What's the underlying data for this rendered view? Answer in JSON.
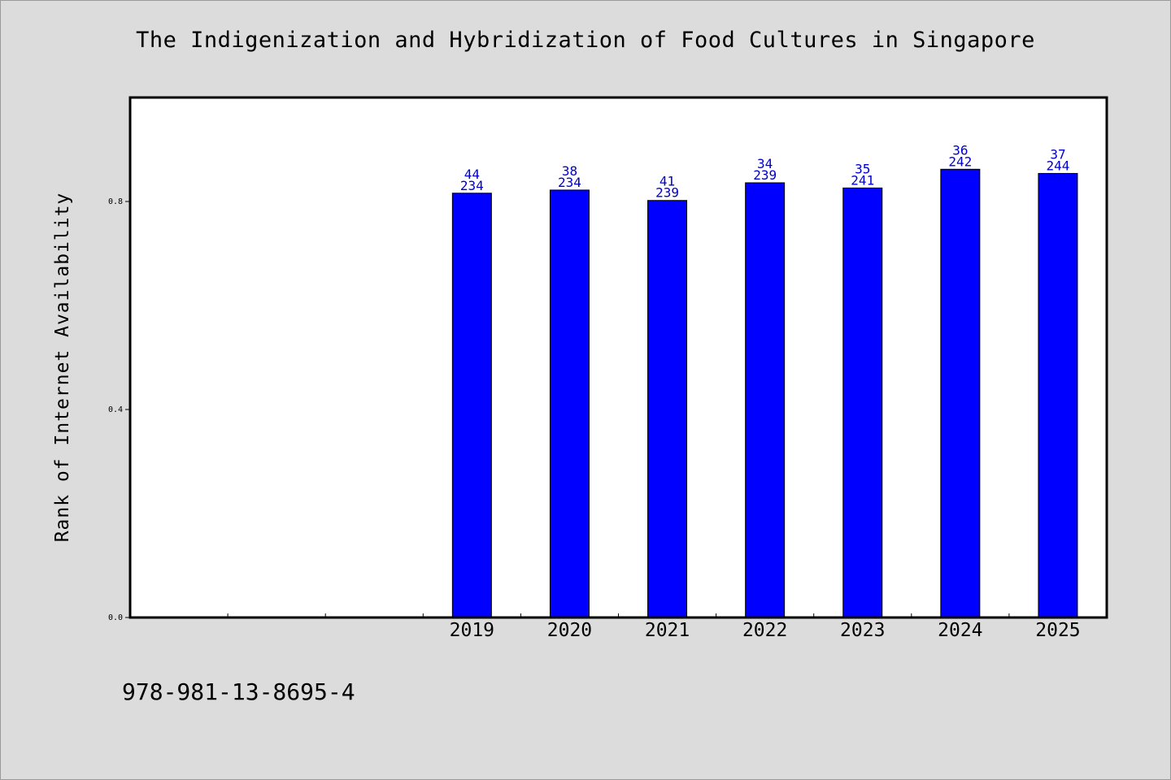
{
  "chart_data": {
    "type": "bar",
    "title": "The Indigenization and Hybridization of Food Cultures in Singapore",
    "xlabel": "",
    "ylabel": "Rank of Internet Availability",
    "categories": [
      "",
      "",
      "",
      "2019",
      "2020",
      "2021",
      "2022",
      "2023",
      "2024",
      "2025"
    ],
    "values": [
      null,
      null,
      null,
      0.816,
      0.822,
      0.802,
      0.836,
      0.826,
      0.862,
      0.854
    ],
    "bar_labels_top": [
      "",
      "",
      "",
      "44",
      "38",
      "41",
      "34",
      "35",
      "36",
      "37"
    ],
    "bar_labels_bottom": [
      "",
      "",
      "",
      "234",
      "234",
      "239",
      "239",
      "241",
      "242",
      "244"
    ],
    "ylim": [
      0,
      1.0
    ],
    "yticks": [
      "0.0",
      "0.4",
      "0.8"
    ],
    "ytick_values": [
      0.0,
      0.4,
      0.8
    ],
    "grid": false,
    "colors": {
      "bar": "#0000ff",
      "label": "#0000cc",
      "background": "#dcdcdc",
      "plot_background": "#ffffff"
    }
  },
  "footer": {
    "isbn": "978-981-13-8695-4"
  }
}
